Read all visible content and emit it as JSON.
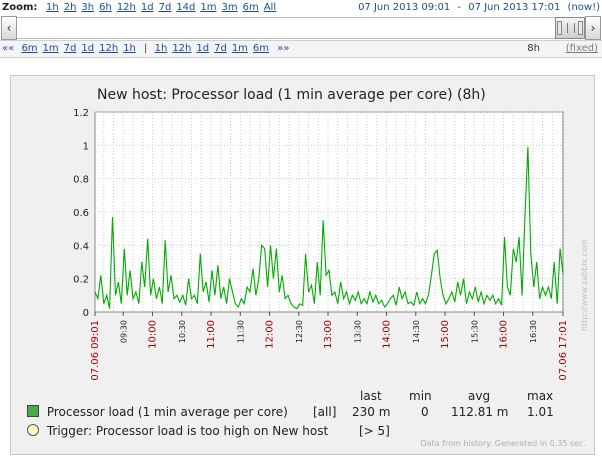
{
  "zoom": {
    "label": "Zoom:",
    "options": [
      "1h",
      "2h",
      "3h",
      "6h",
      "12h",
      "1d",
      "7d",
      "14d",
      "1m",
      "3m",
      "6m",
      "All"
    ],
    "from": "07 Jun 2013 09:01",
    "separator": "-",
    "to": "07 Jun 2013 17:01",
    "now": "(now!)"
  },
  "navigation": {
    "back_arrows": "««",
    "back_options": [
      "6m",
      "1m",
      "7d",
      "1d",
      "12h",
      "1h"
    ],
    "divider": "|",
    "forward_options": [
      "1h",
      "12h",
      "1d",
      "7d",
      "1m",
      "6m"
    ],
    "forward_arrows": "»»",
    "period": "8h",
    "fixed_label": "(fixed)"
  },
  "graph": {
    "title": "New host: Processor load (1 min average per core) (8h)",
    "watermark": "http://www.zabbix.com",
    "footer": "Data from history. Generated in 0.35 sec.",
    "colors": {
      "series": "#00aa00",
      "grid": "#cccccc",
      "red_label": "#aa0000",
      "background": "#ffffff",
      "panel": "#f0f0f0"
    }
  },
  "legend": {
    "headers": {
      "last": "last",
      "min": "min",
      "avg": "avg",
      "max": "max"
    },
    "items": [
      {
        "name": "Processor load (1 min average per core)",
        "scope": "[all]",
        "last": "230 m",
        "min": "0",
        "avg": "112.81 m",
        "max": "1.01",
        "icon": "green-square-swatch"
      }
    ],
    "trigger": {
      "text": "Trigger: Processor load is too high on New host",
      "threshold": "[> 5]",
      "icon": "yellow-circle-icon"
    }
  },
  "chart_data": {
    "type": "line",
    "title": "New host: Processor load (1 min average per core) (8h)",
    "xlabel": "",
    "ylabel": "",
    "ylim": [
      0,
      1.2
    ],
    "yticks": [
      "0",
      "0.2",
      "0.4",
      "0.6",
      "0.8",
      "1",
      "1.2"
    ],
    "xlim": [
      "09:01",
      "17:01"
    ],
    "xticks": [
      {
        "label": "07.06 09:01",
        "t": 0,
        "style": "edge"
      },
      {
        "label": "09:30",
        "t": 29,
        "style": "normal"
      },
      {
        "label": "10:00",
        "t": 59,
        "style": "hour"
      },
      {
        "label": "10:30",
        "t": 89,
        "style": "normal"
      },
      {
        "label": "11:00",
        "t": 119,
        "style": "hour"
      },
      {
        "label": "11:30",
        "t": 149,
        "style": "normal"
      },
      {
        "label": "12:00",
        "t": 179,
        "style": "hour"
      },
      {
        "label": "12:30",
        "t": 209,
        "style": "normal"
      },
      {
        "label": "13:00",
        "t": 239,
        "style": "hour"
      },
      {
        "label": "13:30",
        "t": 269,
        "style": "normal"
      },
      {
        "label": "14:00",
        "t": 299,
        "style": "hour"
      },
      {
        "label": "14:30",
        "t": 329,
        "style": "normal"
      },
      {
        "label": "15:00",
        "t": 359,
        "style": "hour"
      },
      {
        "label": "15:30",
        "t": 389,
        "style": "normal"
      },
      {
        "label": "16:00",
        "t": 419,
        "style": "hour"
      },
      {
        "label": "16:30",
        "t": 449,
        "style": "normal"
      },
      {
        "label": "07.06 17:01",
        "t": 480,
        "style": "edge"
      }
    ],
    "grid": true,
    "series": [
      {
        "name": "Processor load (1 min average per core)",
        "color": "#00aa00",
        "x_minutes": [
          0,
          3,
          6,
          9,
          12,
          15,
          18,
          21,
          24,
          27,
          30,
          33,
          36,
          39,
          42,
          45,
          48,
          51,
          54,
          57,
          60,
          63,
          66,
          69,
          72,
          75,
          78,
          81,
          84,
          87,
          90,
          93,
          96,
          99,
          102,
          105,
          108,
          111,
          114,
          117,
          120,
          123,
          126,
          129,
          132,
          135,
          138,
          141,
          144,
          147,
          150,
          153,
          156,
          159,
          162,
          165,
          168,
          171,
          174,
          177,
          180,
          183,
          186,
          189,
          192,
          195,
          198,
          201,
          204,
          207,
          210,
          213,
          216,
          219,
          222,
          225,
          228,
          231,
          234,
          237,
          240,
          243,
          246,
          249,
          252,
          255,
          258,
          261,
          264,
          267,
          270,
          273,
          276,
          279,
          282,
          285,
          288,
          291,
          294,
          297,
          300,
          303,
          306,
          309,
          312,
          315,
          318,
          321,
          324,
          327,
          330,
          333,
          336,
          339,
          342,
          345,
          348,
          351,
          354,
          357,
          360,
          363,
          366,
          369,
          372,
          375,
          378,
          381,
          384,
          387,
          390,
          393,
          396,
          399,
          402,
          405,
          408,
          411,
          414,
          417,
          420,
          423,
          426,
          429,
          432,
          435,
          438,
          441,
          444,
          447,
          450,
          453,
          456,
          459,
          462,
          465,
          468,
          471,
          474,
          477,
          480
        ],
        "values": [
          0.12,
          0.08,
          0.22,
          0.05,
          0.1,
          0.02,
          0.57,
          0.1,
          0.18,
          0.05,
          0.38,
          0.1,
          0.25,
          0.08,
          0.12,
          0.05,
          0.3,
          0.15,
          0.44,
          0.1,
          0.2,
          0.08,
          0.15,
          0.05,
          0.43,
          0.12,
          0.22,
          0.08,
          0.1,
          0.06,
          0.1,
          0.04,
          0.2,
          0.08,
          0.1,
          0.05,
          0.35,
          0.12,
          0.18,
          0.06,
          0.25,
          0.1,
          0.28,
          0.08,
          0.15,
          0.05,
          0.2,
          0.12,
          0.05,
          0.03,
          0.08,
          0.05,
          0.15,
          0.12,
          0.26,
          0.1,
          0.2,
          0.4,
          0.38,
          0.15,
          0.4,
          0.2,
          0.38,
          0.12,
          0.22,
          0.08,
          0.1,
          0.05,
          0.03,
          0.02,
          0.05,
          0.04,
          0.35,
          0.12,
          0.16,
          0.05,
          0.3,
          0.1,
          0.55,
          0.22,
          0.25,
          0.1,
          0.12,
          0.05,
          0.18,
          0.08,
          0.12,
          0.05,
          0.1,
          0.07,
          0.12,
          0.05,
          0.08,
          0.05,
          0.12,
          0.06,
          0.1,
          0.05,
          0.07,
          0.03,
          0.05,
          0.08,
          0.1,
          0.04,
          0.15,
          0.08,
          0.12,
          0.05,
          0.06,
          0.04,
          0.12,
          0.05,
          0.08,
          0.05,
          0.1,
          0.22,
          0.35,
          0.37,
          0.2,
          0.1,
          0.05,
          0.08,
          0.12,
          0.06,
          0.18,
          0.1,
          0.2,
          0.05,
          0.12,
          0.08,
          0.15,
          0.06,
          0.12,
          0.05,
          0.1,
          0.07,
          0.1,
          0.05,
          0.08,
          0.04,
          0.45,
          0.15,
          0.1,
          0.38,
          0.3,
          0.45,
          0.1,
          0.58,
          0.99,
          0.35,
          0.15,
          0.3,
          0.08,
          0.15,
          0.1,
          0.15,
          0.08,
          0.3,
          0.05,
          0.38,
          0.23
        ]
      }
    ],
    "trigger_threshold": 5
  }
}
